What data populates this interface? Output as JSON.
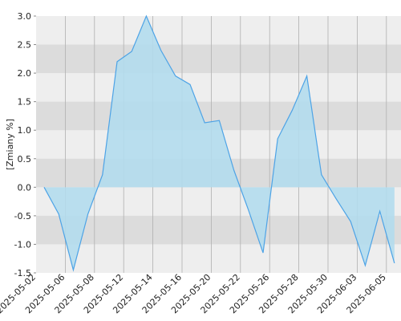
{
  "chart_data": {
    "type": "area",
    "y_label": "[Zmiany %]",
    "xticks": [
      "2025-05-02",
      "2025-05-06",
      "2025-05-08",
      "2025-05-12",
      "2025-05-14",
      "2025-05-16",
      "2025-05-20",
      "2025-05-22",
      "2025-05-26",
      "2025-05-28",
      "2025-05-30",
      "2025-06-03",
      "2025-06-05"
    ],
    "values": [
      0,
      -0.47,
      -1.45,
      -0.47,
      0.22,
      2.2,
      2.38,
      3.0,
      2.4,
      1.95,
      1.8,
      1.13,
      1.17,
      0.3,
      -0.4,
      -1.15,
      0.85,
      1.35,
      1.95,
      0.22,
      -0.2,
      -0.6,
      -1.37,
      -0.42,
      -1.33
    ],
    "color": "#4da3e6",
    "fill": "#b2dbed",
    "ylim": [
      -1.5,
      3.0
    ],
    "yticks": [
      {
        "value": -1.5,
        "label": "-1.5"
      },
      {
        "value": -1.0,
        "label": "-1.0"
      },
      {
        "value": -0.5,
        "label": "-0.5"
      },
      {
        "value": 0,
        "label": "0.0"
      },
      {
        "value": 0.5,
        "label": "0.5"
      },
      {
        "value": 1.0,
        "label": "1.0"
      },
      {
        "value": 1.5,
        "label": "1.5"
      },
      {
        "value": 2.0,
        "label": "2.0"
      },
      {
        "value": 2.5,
        "label": "2.5"
      },
      {
        "value": 3.0,
        "label": "3.0"
      }
    ],
    "grid": true
  }
}
